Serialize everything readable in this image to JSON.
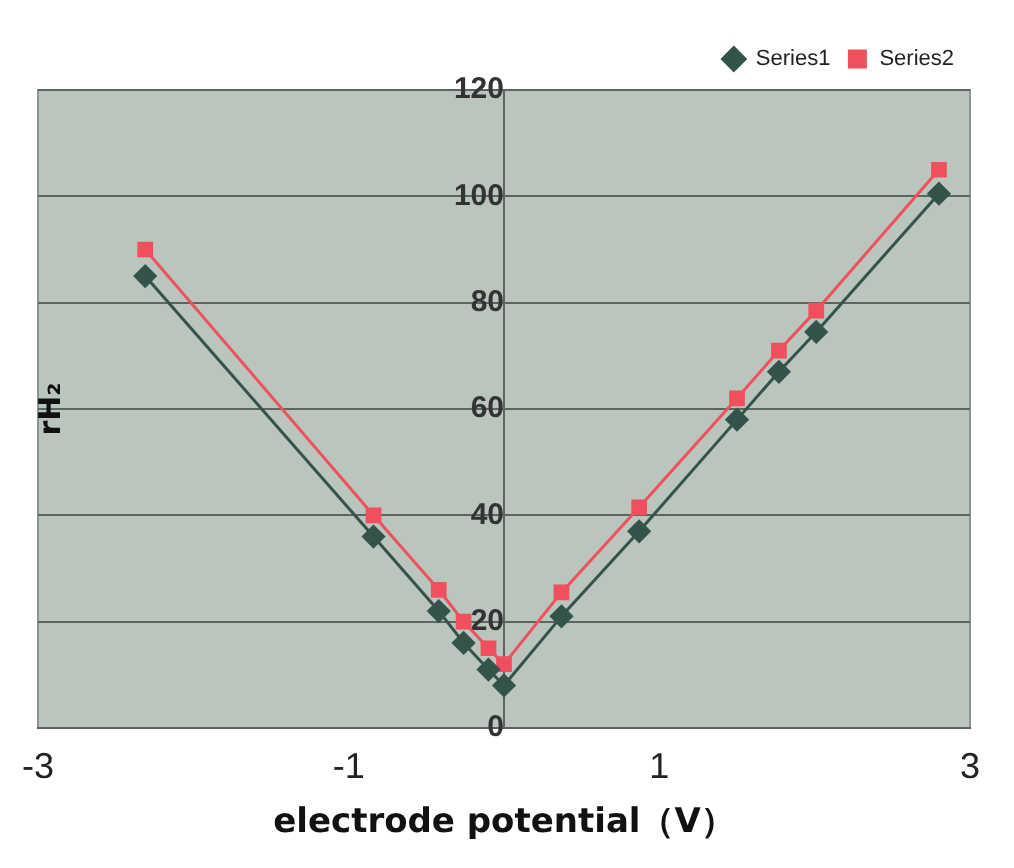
{
  "chart_data": {
    "type": "line",
    "xlabel": "electrode potential（V）",
    "ylabel": "rH₂",
    "xlim": [
      -3,
      3
    ],
    "xticks": [
      -3,
      -1,
      1,
      3
    ],
    "ylim": [
      0,
      120
    ],
    "yticks": [
      0,
      20,
      40,
      60,
      80,
      100,
      120
    ],
    "grid": "y",
    "legend": "top right",
    "line_style": "solid",
    "series": [
      {
        "name": "Series1",
        "color": "#34534b",
        "marker": "diamond",
        "x": [
          -2.31,
          -0.84,
          -0.42,
          -0.26,
          -0.1,
          0,
          0.37,
          0.87,
          1.5,
          1.77,
          2.01,
          2.8
        ],
        "values": [
          85,
          36,
          22,
          16,
          11,
          8,
          21,
          37,
          58,
          67,
          74.5,
          100.5
        ]
      },
      {
        "name": "Series2",
        "color": "#f0505e",
        "marker": "square",
        "x": [
          -2.31,
          -0.84,
          -0.42,
          -0.26,
          -0.1,
          0,
          0.37,
          0.87,
          1.5,
          1.77,
          2.01,
          2.8
        ],
        "values": [
          90,
          40,
          26,
          20,
          15,
          12,
          25.5,
          41.5,
          62,
          71,
          78.5,
          105
        ]
      }
    ]
  }
}
